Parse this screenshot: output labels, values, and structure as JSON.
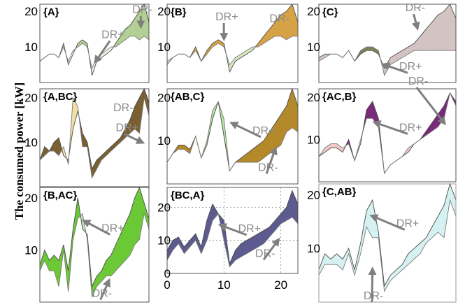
{
  "figure": {
    "ylabel": "The consumed power [kW]"
  },
  "chart_data": [
    {
      "panel": "{A}",
      "type": "area",
      "ylim": [
        0,
        22
      ],
      "xlim": [
        0,
        23
      ],
      "yticks": [
        10,
        20
      ],
      "xticks": [],
      "grid": false,
      "x": [
        0,
        1,
        2,
        3,
        4,
        5,
        6,
        7,
        8,
        9,
        10,
        11,
        12,
        13,
        14,
        15,
        16,
        17,
        18,
        19,
        20,
        21,
        22,
        23
      ],
      "series": [
        {
          "values": [
            6,
            7,
            8,
            8,
            7,
            11,
            5,
            8,
            11,
            12,
            11,
            2,
            6,
            7,
            8,
            9,
            11,
            13,
            15,
            16,
            18,
            20,
            22,
            17
          ]
        },
        {
          "values": [
            6,
            7,
            8,
            8,
            7,
            10,
            6,
            9,
            10,
            11,
            10,
            4,
            7,
            8,
            9,
            10,
            10,
            11,
            12,
            13,
            13,
            12,
            13,
            12
          ]
        }
      ],
      "fill_colors": [
        "#b2cf94",
        "#f0f4ea"
      ],
      "annotations": [
        {
          "text": "DR-",
          "x": 19.5,
          "y": 19.5,
          "ax": 21.3,
          "ay": 16
        },
        {
          "text": "DR+",
          "x": 13,
          "y": 12.5,
          "ax": 11.8,
          "ay": 6
        }
      ]
    },
    {
      "panel": "{B}",
      "type": "area",
      "ylim": [
        0,
        22
      ],
      "xlim": [
        0,
        23
      ],
      "yticks": [
        10,
        20
      ],
      "xticks": [],
      "grid": false,
      "x": [
        0,
        1,
        2,
        3,
        4,
        5,
        6,
        7,
        8,
        9,
        10,
        11,
        12,
        13,
        14,
        15,
        16,
        17,
        18,
        19,
        20,
        21,
        22,
        23
      ],
      "series": [
        {
          "values": [
            5,
            7,
            8,
            8,
            7,
            10,
            6,
            9,
            11,
            12,
            11,
            3,
            6,
            7,
            8,
            9,
            11,
            13,
            15,
            17,
            19,
            20,
            22,
            17
          ]
        },
        {
          "values": [
            6,
            7,
            8,
            8,
            7,
            9,
            6,
            8,
            10,
            11,
            10,
            5,
            7,
            8,
            9,
            10,
            10,
            11,
            12,
            13,
            13,
            12,
            13,
            13
          ]
        }
      ],
      "fill_colors": [
        "#d6a245",
        "#d9e9bf"
      ],
      "annotations": [
        {
          "text": "DR+",
          "x": 8.5,
          "y": 17.5,
          "ax": 10,
          "ay": 12.5
        },
        {
          "text": "DR-",
          "x": 18,
          "y": 17,
          "ax": 0,
          "ay": 0
        }
      ]
    },
    {
      "panel": "{C}",
      "type": "area",
      "ylim": [
        0,
        22
      ],
      "xlim": [
        0,
        23
      ],
      "yticks": [
        10,
        20
      ],
      "xticks": [],
      "grid": false,
      "x": [
        0,
        1,
        2,
        3,
        4,
        5,
        6,
        7,
        8,
        9,
        10,
        11,
        12,
        13,
        14,
        15,
        16,
        17,
        18,
        19,
        20,
        21,
        22,
        23
      ],
      "series": [
        {
          "values": [
            7,
            8,
            8,
            8,
            7,
            9,
            6,
            8,
            9,
            9,
            8,
            4,
            7,
            8,
            9,
            10,
            11,
            13,
            15,
            17,
            19,
            20,
            22,
            18
          ]
        },
        {
          "values": [
            6,
            7,
            8,
            8,
            7,
            9,
            6,
            9,
            10,
            10,
            9,
            2,
            5,
            6,
            7,
            8,
            9,
            9,
            9,
            9,
            9,
            9,
            9,
            9
          ]
        }
      ],
      "fill_colors": [
        "#d3c3c3",
        "#7c8256"
      ],
      "annotations": [
        {
          "text": "DR-",
          "x": 14.5,
          "y": 20,
          "ax": 16.5,
          "ay": 15.5
        },
        {
          "text": "DR+",
          "x": 13.5,
          "y": 3.5,
          "ax": 11,
          "ay": 5
        }
      ]
    },
    {
      "panel": "{A,BC}",
      "type": "area",
      "ylim": [
        0,
        22
      ],
      "xlim": [
        0,
        23
      ],
      "yticks": [
        10,
        20
      ],
      "xticks": [],
      "grid": false,
      "x": [
        0,
        1,
        2,
        3,
        4,
        5,
        6,
        7,
        8,
        9,
        10,
        11,
        12,
        13,
        14,
        15,
        16,
        17,
        18,
        19,
        20,
        21,
        22,
        23
      ],
      "series": [
        {
          "values": [
            6,
            9,
            8,
            10,
            11,
            7,
            6,
            13,
            17,
            12,
            10,
            4,
            6,
            7,
            8,
            9,
            10,
            11,
            13,
            15,
            18,
            20,
            22,
            19
          ]
        },
        {
          "values": [
            6,
            7,
            8,
            8,
            7,
            9,
            5,
            20,
            18,
            9,
            9,
            2,
            4,
            6,
            7,
            8,
            9,
            10,
            11,
            12,
            13,
            12,
            20,
            16
          ]
        }
      ],
      "fill_colors": [
        "#7a6030",
        "#f3dfa4"
      ],
      "annotations": [
        {
          "text": "DR-",
          "x": 15.5,
          "y": 17,
          "ax": 0,
          "ay": 0
        },
        {
          "text": "DR+",
          "x": 16,
          "y": 12.5,
          "ax": 21.5,
          "ay": 10
        }
      ]
    },
    {
      "panel": "{AB,C}",
      "type": "area",
      "ylim": [
        0,
        22
      ],
      "xlim": [
        0,
        23
      ],
      "yticks": [
        10,
        20
      ],
      "xticks": [],
      "grid": false,
      "x": [
        0,
        1,
        2,
        3,
        4,
        5,
        6,
        7,
        8,
        9,
        10,
        11,
        12,
        13,
        14,
        15,
        16,
        17,
        18,
        19,
        20,
        21,
        22,
        23
      ],
      "series": [
        {
          "values": [
            5,
            7,
            9,
            9,
            8,
            11,
            6,
            9,
            15,
            19,
            11,
            3,
            5,
            6,
            7,
            8,
            9,
            10,
            12,
            14,
            16,
            18,
            22,
            18
          ]
        },
        {
          "values": [
            5,
            7,
            8,
            8,
            7,
            11,
            6,
            10,
            17,
            19,
            15,
            3,
            5,
            5,
            5,
            5,
            5,
            6,
            7,
            8,
            9,
            12,
            13,
            12
          ]
        }
      ],
      "fill_colors": [
        "#b3892a",
        "#b5e6a0"
      ],
      "annotations": [
        {
          "text": "DR+",
          "x": 15,
          "y": 11.5,
          "ax": 11.5,
          "ay": 14
        },
        {
          "text": "DR-",
          "x": 16,
          "y": 3,
          "ax": 19,
          "ay": 8
        }
      ]
    },
    {
      "panel": "{AC,B}",
      "type": "area",
      "ylim": [
        0,
        22
      ],
      "xlim": [
        0,
        23
      ],
      "yticks": [
        10,
        20
      ],
      "xticks": [],
      "grid": false,
      "x": [
        0,
        1,
        2,
        3,
        4,
        5,
        6,
        7,
        8,
        9,
        10,
        11,
        12,
        13,
        14,
        15,
        16,
        17,
        18,
        19,
        20,
        21,
        22,
        23
      ],
      "series": [
        {
          "values": [
            6,
            7,
            8,
            8,
            7,
            10,
            5,
            9,
            17,
            19,
            15,
            2,
            4,
            5,
            6,
            7,
            9,
            10,
            12,
            14,
            16,
            18,
            21,
            19
          ]
        },
        {
          "values": [
            6,
            8,
            9,
            9,
            8,
            9,
            5,
            10,
            15,
            15,
            13,
            2,
            4,
            5,
            6,
            8,
            9,
            10,
            11,
            12,
            13,
            15,
            21,
            18
          ]
        }
      ],
      "fill_colors": [
        "#7a2a7a",
        "#f2c9c6"
      ],
      "annotations": [
        {
          "text": "DR-",
          "x": 15,
          "y": 23,
          "ax": 21,
          "ay": 14
        },
        {
          "text": "DR+",
          "x": 13.5,
          "y": 12,
          "ax": 9.5,
          "ay": 14
        }
      ]
    },
    {
      "panel": "{B,AC}",
      "type": "area",
      "ylim": [
        0,
        22
      ],
      "xlim": [
        0,
        23
      ],
      "yticks": [
        10,
        20
      ],
      "xticks": [],
      "grid": false,
      "x": [
        0,
        1,
        2,
        3,
        4,
        5,
        6,
        7,
        8,
        9,
        10,
        11,
        12,
        13,
        14,
        15,
        16,
        17,
        18,
        19,
        20,
        21,
        22,
        23
      ],
      "series": [
        {
          "values": [
            7,
            10,
            8,
            9,
            8,
            11,
            6,
            14,
            20,
            14,
            13,
            3,
            5,
            6,
            8,
            9,
            11,
            13,
            15,
            17,
            20,
            22,
            19,
            16
          ]
        },
        {
          "values": [
            6,
            8,
            6,
            6,
            3,
            10,
            2,
            12,
            16,
            17,
            12,
            1,
            3,
            4,
            5,
            5,
            6,
            7,
            8,
            9,
            11,
            12,
            17,
            14
          ]
        }
      ],
      "fill_colors": [
        "#6cc936",
        "#b9e3b2"
      ],
      "annotations": [
        {
          "text": "DR+",
          "x": 13,
          "y": 13.5,
          "ax": 9.5,
          "ay": 15.5
        },
        {
          "text": "DR-",
          "x": 11,
          "y": 1,
          "ax": 14.5,
          "ay": 4
        }
      ]
    },
    {
      "panel": "{BC,A}",
      "type": "area",
      "ylim": [
        0,
        26
      ],
      "xlim": [
        0,
        23
      ],
      "yticks": [
        0,
        10,
        20
      ],
      "xticks": [
        0,
        10,
        20
      ],
      "grid": true,
      "x": [
        0,
        1,
        2,
        3,
        4,
        5,
        6,
        7,
        8,
        9,
        10,
        11,
        12,
        13,
        14,
        15,
        16,
        17,
        18,
        19,
        20,
        21,
        22,
        23
      ],
      "series": [
        {
          "values": [
            7,
            10,
            11,
            8,
            10,
            12,
            8,
            16,
            21,
            18,
            16,
            3,
            7,
            9,
            10,
            11,
            12,
            13,
            14,
            16,
            18,
            20,
            25,
            21
          ]
        },
        {
          "values": [
            4,
            7,
            9,
            6,
            8,
            10,
            6,
            10,
            16,
            18,
            10,
            2,
            4,
            5,
            6,
            7,
            8,
            9,
            11,
            13,
            15,
            16,
            17,
            15
          ]
        }
      ],
      "fill_colors": [
        "#5c5a8e",
        "#8a82e6"
      ],
      "annotations": [
        {
          "text": "DR+",
          "x": 12.5,
          "y": 12.5,
          "ax": 9.5,
          "ay": 14.5
        },
        {
          "text": "DR-",
          "x": 15.5,
          "y": 5,
          "ax": 19.5,
          "ay": 10
        }
      ]
    },
    {
      "panel": "{C,AB}",
      "type": "area",
      "ylim": [
        0,
        22
      ],
      "xlim": [
        0,
        23
      ],
      "yticks": [
        10,
        20
      ],
      "xticks": [],
      "grid": false,
      "x": [
        0,
        1,
        2,
        3,
        4,
        5,
        6,
        7,
        8,
        9,
        10,
        11,
        12,
        13,
        14,
        15,
        16,
        17,
        18,
        19,
        20,
        21,
        22,
        23
      ],
      "series": [
        {
          "values": [
            6,
            9,
            8,
            9,
            8,
            10,
            6,
            11,
            17,
            19,
            13,
            3,
            5,
            6,
            7,
            9,
            10,
            11,
            12,
            14,
            16,
            18,
            22,
            19
          ]
        },
        {
          "values": [
            5,
            7,
            7,
            7,
            6,
            9,
            5,
            9,
            14,
            12,
            12,
            2,
            4,
            5,
            6,
            7,
            8,
            9,
            11,
            12,
            13,
            12,
            19,
            16
          ]
        }
      ],
      "fill_colors": [
        "#d6f1f2",
        "#ddf5f6"
      ],
      "annotations": [
        {
          "text": "DR+",
          "x": 13,
          "y": 14,
          "ax": 9,
          "ay": 16
        },
        {
          "text": "DR-",
          "x": 7.5,
          "y": 0.5,
          "ax": 9,
          "ay": 6
        }
      ]
    }
  ]
}
